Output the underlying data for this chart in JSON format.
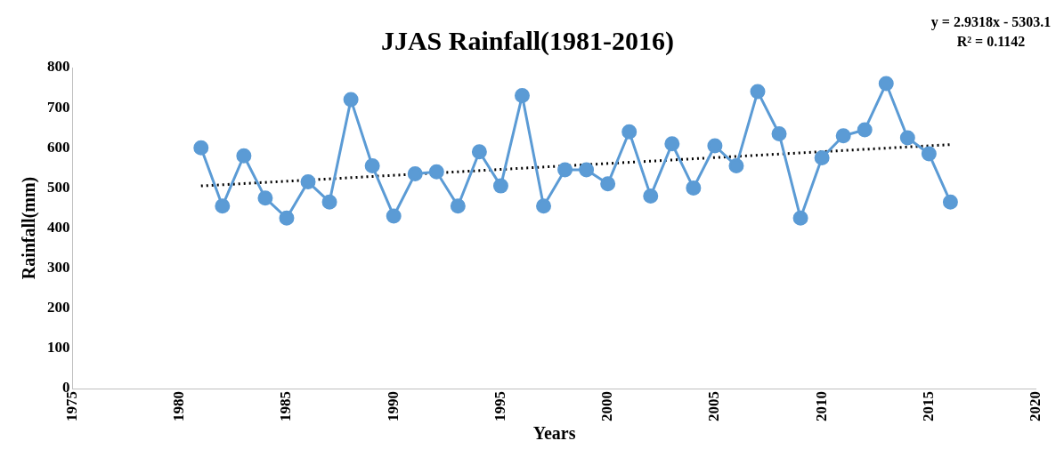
{
  "chart_data": {
    "type": "line",
    "title": "JJAS Rainfall(1981-2016)",
    "xlabel": "Years",
    "ylabel": "Rainfall(mm)",
    "annotations": [
      "y = 2.9318x - 5303.1",
      "R² = 0.1142"
    ],
    "xlim": [
      1975,
      2020
    ],
    "xticks": [
      1975,
      1980,
      1985,
      1990,
      1995,
      2000,
      2005,
      2010,
      2015,
      2020
    ],
    "ylim": [
      0,
      800
    ],
    "yticks": [
      0,
      100,
      200,
      300,
      400,
      500,
      600,
      700,
      800
    ],
    "grid": false,
    "legend": false,
    "marker": "circle",
    "line_style": "solid",
    "series": [
      {
        "color": "#5b9bd5",
        "x": [
          1981,
          1982,
          1983,
          1984,
          1985,
          1986,
          1987,
          1988,
          1989,
          1990,
          1991,
          1992,
          1993,
          1994,
          1995,
          1996,
          1997,
          1998,
          1999,
          2000,
          2001,
          2002,
          2003,
          2004,
          2005,
          2006,
          2007,
          2008,
          2009,
          2010,
          2011,
          2012,
          2013,
          2014,
          2015,
          2016
        ],
        "values": [
          600,
          455,
          580,
          475,
          425,
          515,
          465,
          720,
          555,
          430,
          535,
          540,
          455,
          590,
          505,
          730,
          455,
          545,
          545,
          510,
          640,
          480,
          610,
          500,
          605,
          555,
          740,
          635,
          425,
          575,
          630,
          645,
          760,
          625,
          585,
          465
        ]
      },
      {
        "color": "#000000",
        "marker": "none",
        "line_style": "dotted",
        "x": [
          1981,
          2016
        ],
        "values": [
          505,
          608
        ]
      }
    ]
  }
}
